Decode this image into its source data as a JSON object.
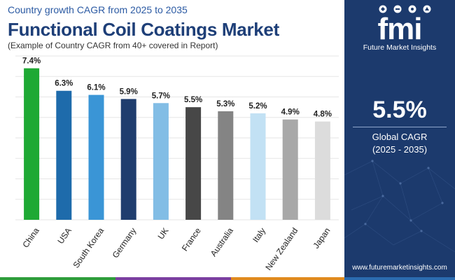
{
  "header": {
    "subtitle": "Country growth CAGR from 2025 to 2035",
    "title": "Functional Coil Coatings Market",
    "note": "(Example of Country CAGR from 40+ covered in Report)"
  },
  "brand": {
    "logo_letters": "fmi",
    "name": "Future Market Insights",
    "website": "www.futuremarketinsights.com"
  },
  "summary": {
    "value": "5.5%",
    "label": "Global CAGR",
    "range": "(2025 - 2035)"
  },
  "colors": {
    "panel": "#1c3a6d",
    "title": "#1e3f78",
    "bottom_bar": [
      "#2e9d3a",
      "#7b3fa0",
      "#e08a1e",
      "#2b6cb0"
    ]
  },
  "chart_data": {
    "type": "bar",
    "categories": [
      "China",
      "USA",
      "South Korea",
      "Germany",
      "UK",
      "France",
      "Australia",
      "Italy",
      "New Zealand",
      "Japan"
    ],
    "values": [
      7.4,
      6.3,
      6.1,
      5.9,
      5.7,
      5.5,
      5.3,
      5.2,
      4.9,
      4.8
    ],
    "labels": [
      "7.4%",
      "6.3%",
      "6.1%",
      "5.9%",
      "5.7%",
      "5.5%",
      "5.3%",
      "5.2%",
      "4.9%",
      "4.8%"
    ],
    "colors": [
      "#1ea934",
      "#1e6bab",
      "#3a95d6",
      "#1f3d6e",
      "#82bde5",
      "#474747",
      "#848484",
      "#c2e1f4",
      "#a8a8a8",
      "#dcdcdc"
    ],
    "ylim": [
      0,
      8
    ],
    "grid": true,
    "title": "",
    "xlabel": "",
    "ylabel": ""
  }
}
